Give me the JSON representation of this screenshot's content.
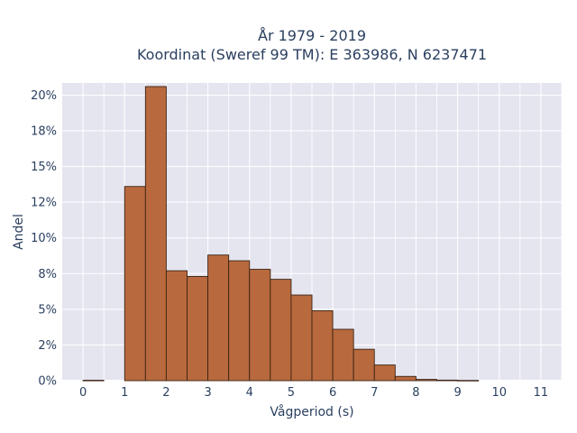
{
  "chart_data": {
    "type": "bar",
    "title_lines": [
      "År 1979 - 2019",
      "Koordinat (Sweref 99 TM): E 363986, N 6237471"
    ],
    "xlabel": "Vågperiod (s)",
    "ylabel": "Andel",
    "bin_width": 0.5,
    "bins": [
      {
        "x0": 0.0,
        "x1": 0.5,
        "value": 0.0003
      },
      {
        "x0": 0.5,
        "x1": 1.0,
        "value": 0.0
      },
      {
        "x0": 1.0,
        "x1": 1.5,
        "value": 0.136
      },
      {
        "x0": 1.5,
        "x1": 2.0,
        "value": 0.206
      },
      {
        "x0": 2.0,
        "x1": 2.5,
        "value": 0.077
      },
      {
        "x0": 2.5,
        "x1": 3.0,
        "value": 0.073
      },
      {
        "x0": 3.0,
        "x1": 3.5,
        "value": 0.088
      },
      {
        "x0": 3.5,
        "x1": 4.0,
        "value": 0.084
      },
      {
        "x0": 4.0,
        "x1": 4.5,
        "value": 0.078
      },
      {
        "x0": 4.5,
        "x1": 5.0,
        "value": 0.071
      },
      {
        "x0": 5.0,
        "x1": 5.5,
        "value": 0.06
      },
      {
        "x0": 5.5,
        "x1": 6.0,
        "value": 0.049
      },
      {
        "x0": 6.0,
        "x1": 6.5,
        "value": 0.036
      },
      {
        "x0": 6.5,
        "x1": 7.0,
        "value": 0.022
      },
      {
        "x0": 7.0,
        "x1": 7.5,
        "value": 0.011
      },
      {
        "x0": 7.5,
        "x1": 8.0,
        "value": 0.003
      },
      {
        "x0": 8.0,
        "x1": 8.5,
        "value": 0.0009
      },
      {
        "x0": 8.5,
        "x1": 9.0,
        "value": 0.0004
      },
      {
        "x0": 9.0,
        "x1": 9.5,
        "value": 0.0002
      }
    ],
    "xlim": [
      -0.5,
      11.5
    ],
    "ylim": [
      0,
      0.2085
    ],
    "x_ticks": [
      0,
      1,
      2,
      3,
      4,
      5,
      6,
      7,
      8,
      9,
      10,
      11
    ],
    "x_tick_labels": [
      "0",
      "1",
      "2",
      "3",
      "4",
      "5",
      "6",
      "7",
      "8",
      "9",
      "10",
      "11"
    ],
    "y_ticks": [
      0,
      0.025,
      0.05,
      0.075,
      0.1,
      0.125,
      0.15,
      0.175,
      0.2
    ],
    "y_tick_labels": [
      "0%",
      "2%",
      "5%",
      "8%",
      "10%",
      "12%",
      "15%",
      "18%",
      "20%"
    ],
    "grid": true,
    "colors": {
      "bar_fill": "#b8693d",
      "bar_stroke": "#3a2416",
      "plot_bg": "#e5e5f0",
      "grid": "#ffffff",
      "text": "#2a3f5f"
    }
  }
}
